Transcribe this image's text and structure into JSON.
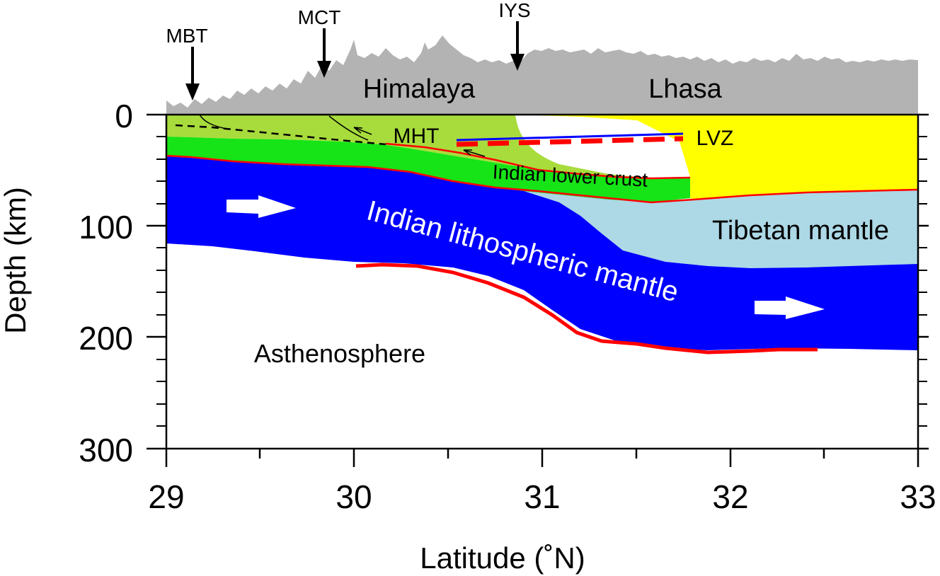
{
  "axes": {
    "ylabel": "Depth (km)",
    "xlabel": "Latitude (˚N)",
    "y_ticks": [
      "0",
      "100",
      "200",
      "300"
    ],
    "x_ticks": [
      "29",
      "30",
      "31",
      "32",
      "33"
    ],
    "x_range": [
      29,
      33
    ],
    "y_range_km": [
      0,
      300
    ]
  },
  "arrows": {
    "mbt": "MBT",
    "mct": "MCT",
    "iys": "IYS"
  },
  "regions": {
    "himalaya": "Himalaya",
    "lhasa": "Lhasa",
    "mht": "MHT",
    "lvz": "LVZ",
    "indian_lower_crust": "Indian lower crust",
    "indian_lithospheric_mantle": "Indian lithospheric mantle",
    "tibetan_mantle": "Tibetan mantle",
    "asthenosphere": "Asthenosphere"
  },
  "colors": {
    "topography": "#b3b3b3",
    "upper_crust": "#a8dc3c",
    "indian_lower_crust": "#16e416",
    "tibetan_crust": "#ffff00",
    "indian_mantle": "#0000ff",
    "tibetan_mantle": "#add8e6",
    "boundary_line": "#ff0000",
    "lvz_top": "#0000ff"
  }
}
